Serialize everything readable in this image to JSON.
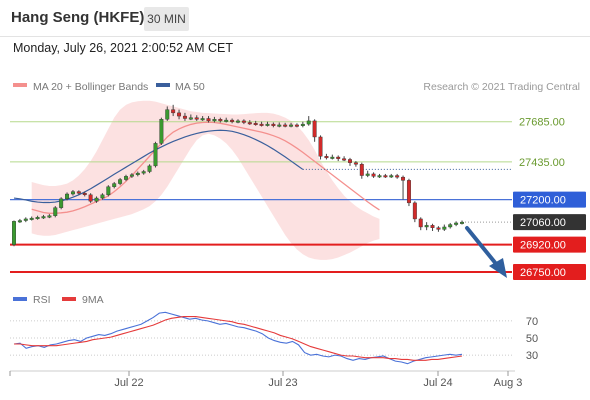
{
  "header": {
    "title": "Hang Seng (HKFE)",
    "timeframe": "30 MIN"
  },
  "timestamp": "Monday, July 26, 2021 2:00:52 AM CET",
  "legend": {
    "items": [
      {
        "label": "MA 20 + Bollinger Bands",
        "color": "#f4908e"
      },
      {
        "label": "MA 50",
        "color": "#3a5f9c"
      }
    ],
    "credit": "Research © 2021 Trading Central"
  },
  "rsi_legend": {
    "items": [
      {
        "label": "RSI",
        "color": "#4a72d8"
      },
      {
        "label": "9MA",
        "color": "#e53b3b"
      }
    ]
  },
  "chart_data": [
    {
      "type": "candlestick",
      "title": "Hang Seng (HKFE)",
      "timeframe": "30 MIN",
      "ylim": [
        26700,
        27820
      ],
      "x_ticks": [
        "Jul 22",
        "Jul 23",
        "Jul 24",
        "Aug 3"
      ],
      "levels": [
        {
          "value": 27685,
          "label": "27685.00",
          "style": "resistance"
        },
        {
          "value": 27435,
          "label": "27435.00",
          "style": "resistance"
        },
        {
          "value": 27200,
          "label": "27200.00",
          "style": "pivot"
        },
        {
          "value": 27060,
          "label": "27060.00",
          "style": "last"
        },
        {
          "value": 26920,
          "label": "26920.00",
          "style": "support"
        },
        {
          "value": 26750,
          "label": "26750.00",
          "style": "support"
        }
      ],
      "candles": [
        [
          26920,
          27065,
          26910,
          27070
        ],
        [
          27065,
          27070,
          27055,
          27080
        ],
        [
          27070,
          27080,
          27060,
          27090
        ],
        [
          27080,
          27085,
          27070,
          27095
        ],
        [
          27085,
          27090,
          27075,
          27100
        ],
        [
          27090,
          27095,
          27080,
          27105
        ],
        [
          27095,
          27100,
          27085,
          27110
        ],
        [
          27100,
          27150,
          27090,
          27160
        ],
        [
          27150,
          27205,
          27140,
          27215
        ],
        [
          27205,
          27235,
          27195,
          27245
        ],
        [
          27235,
          27250,
          27225,
          27260
        ],
        [
          27250,
          27240,
          27230,
          27258
        ],
        [
          27240,
          27230,
          27220,
          27250
        ],
        [
          27230,
          27190,
          27180,
          27240
        ],
        [
          27190,
          27210,
          27180,
          27220
        ],
        [
          27210,
          27230,
          27200,
          27240
        ],
        [
          27230,
          27280,
          27220,
          27290
        ],
        [
          27280,
          27300,
          27270,
          27310
        ],
        [
          27300,
          27325,
          27290,
          27335
        ],
        [
          27325,
          27345,
          27315,
          27355
        ],
        [
          27345,
          27355,
          27335,
          27365
        ],
        [
          27355,
          27365,
          27345,
          27375
        ],
        [
          27365,
          27375,
          27355,
          27385
        ],
        [
          27375,
          27410,
          27365,
          27420
        ],
        [
          27410,
          27550,
          27400,
          27560
        ],
        [
          27550,
          27700,
          27540,
          27710
        ],
        [
          27700,
          27760,
          27690,
          27780
        ],
        [
          27760,
          27740,
          27720,
          27790
        ],
        [
          27740,
          27720,
          27700,
          27760
        ],
        [
          27720,
          27705,
          27690,
          27740
        ],
        [
          27705,
          27710,
          27695,
          27730
        ],
        [
          27710,
          27700,
          27690,
          27725
        ],
        [
          27700,
          27705,
          27690,
          27720
        ],
        [
          27705,
          27690,
          27680,
          27720
        ],
        [
          27690,
          27700,
          27680,
          27715
        ],
        [
          27700,
          27690,
          27680,
          27710
        ],
        [
          27690,
          27695,
          27680,
          27710
        ],
        [
          27695,
          27685,
          27675,
          27705
        ],
        [
          27685,
          27690,
          27675,
          27700
        ],
        [
          27690,
          27680,
          27670,
          27700
        ],
        [
          27680,
          27675,
          27665,
          27695
        ],
        [
          27675,
          27670,
          27660,
          27690
        ],
        [
          27670,
          27665,
          27655,
          27685
        ],
        [
          27665,
          27670,
          27655,
          27685
        ],
        [
          27670,
          27660,
          27650,
          27680
        ],
        [
          27660,
          27665,
          27650,
          27680
        ],
        [
          27665,
          27660,
          27650,
          27678
        ],
        [
          27660,
          27665,
          27650,
          27678
        ],
        [
          27665,
          27660,
          27650,
          27675
        ],
        [
          27660,
          27670,
          27650,
          27685
        ],
        [
          27670,
          27690,
          27660,
          27720
        ],
        [
          27690,
          27590,
          27560,
          27700
        ],
        [
          27590,
          27470,
          27450,
          27600
        ],
        [
          27470,
          27460,
          27450,
          27485
        ],
        [
          27460,
          27465,
          27450,
          27480
        ],
        [
          27465,
          27455,
          27440,
          27475
        ],
        [
          27455,
          27450,
          27440,
          27470
        ],
        [
          27450,
          27430,
          27410,
          27460
        ],
        [
          27430,
          27420,
          27405,
          27440
        ],
        [
          27420,
          27350,
          27330,
          27430
        ],
        [
          27350,
          27360,
          27340,
          27380
        ],
        [
          27360,
          27345,
          27335,
          27370
        ],
        [
          27345,
          27350,
          27335,
          27360
        ],
        [
          27350,
          27345,
          27335,
          27360
        ],
        [
          27345,
          27350,
          27335,
          27360
        ],
        [
          27350,
          27340,
          27330,
          27360
        ],
        [
          27340,
          27320,
          27200,
          27350
        ],
        [
          27320,
          27180,
          27160,
          27330
        ],
        [
          27180,
          27080,
          27060,
          27190
        ],
        [
          27080,
          27030,
          27010,
          27090
        ],
        [
          27030,
          27040,
          27010,
          27060
        ],
        [
          27040,
          27025,
          27005,
          27050
        ],
        [
          27025,
          27015,
          27000,
          27035
        ],
        [
          27015,
          27030,
          27005,
          27045
        ],
        [
          27030,
          27045,
          27020,
          27055
        ],
        [
          27045,
          27055,
          27035,
          27065
        ],
        [
          27055,
          27060,
          27045,
          27070
        ]
      ],
      "ma20": [
        27140,
        27130,
        27120,
        27115,
        27115,
        27118,
        27122,
        27130,
        27142,
        27156,
        27172,
        27188,
        27204,
        27224,
        27250,
        27280,
        27314,
        27350,
        27390,
        27430,
        27470,
        27510,
        27550,
        27590,
        27620,
        27640,
        27656,
        27668,
        27676,
        27680,
        27682,
        27680,
        27675,
        27668,
        27660,
        27652,
        27644,
        27636,
        27628,
        27620,
        27610,
        27598,
        27584,
        27566,
        27544,
        27520,
        27494,
        27466,
        27438,
        27410,
        27382,
        27354,
        27326,
        27298,
        27270,
        27242,
        27214,
        27186,
        27160,
        27136
      ],
      "ma20_x_start": 3,
      "bb_upper": [
        27310,
        27300,
        27290,
        27285,
        27285,
        27290,
        27300,
        27320,
        27350,
        27390,
        27440,
        27500,
        27570,
        27640,
        27710,
        27760,
        27790,
        27805,
        27812,
        27815,
        27815,
        27810,
        27800,
        27790,
        27780,
        27770,
        27760,
        27750,
        27745,
        27740,
        27738,
        27736,
        27734,
        27732,
        27730,
        27730,
        27732,
        27735,
        27738,
        27740,
        27740,
        27735,
        27725,
        27710,
        27690,
        27660,
        27620,
        27570,
        27510,
        27440,
        27380,
        27320,
        27270,
        27225,
        27190,
        27160,
        27135,
        27115,
        27095,
        27080
      ],
      "bb_lower": [
        26990,
        26980,
        26975,
        26975,
        26980,
        26990,
        27000,
        27010,
        27020,
        27030,
        27040,
        27050,
        27060,
        27070,
        27080,
        27090,
        27100,
        27110,
        27125,
        27140,
        27160,
        27190,
        27230,
        27280,
        27340,
        27400,
        27460,
        27520,
        27570,
        27600,
        27610,
        27600,
        27580,
        27550,
        27510,
        27460,
        27400,
        27340,
        27280,
        27220,
        27160,
        27100,
        27040,
        26980,
        26930,
        26890,
        26860,
        26840,
        26830,
        26825,
        26825,
        26830,
        26840,
        26855,
        26870,
        26890,
        26910,
        26930,
        26945,
        26955
      ],
      "ma50": [
        27210,
        27205,
        27198,
        27190,
        27185,
        27182,
        27182,
        27185,
        27192,
        27202,
        27215,
        27230,
        27248,
        27268,
        27290,
        27312,
        27335,
        27358,
        27380,
        27402,
        27424,
        27446,
        27468,
        27490,
        27510,
        27528,
        27546,
        27562,
        27576,
        27590,
        27602,
        27612,
        27620,
        27626,
        27630,
        27632,
        27630,
        27625,
        27616,
        27604,
        27590,
        27574,
        27556,
        27536,
        27514,
        27490,
        27466,
        27440,
        27414,
        27388
      ],
      "ma50_x_start": 0
    },
    {
      "type": "line",
      "title": "RSI",
      "ylim": [
        15,
        85
      ],
      "yticks": [
        70,
        50,
        30
      ],
      "x_ticks": [
        "Jul 22",
        "Jul 23",
        "Jul 24",
        "Aug 3"
      ],
      "series": [
        {
          "name": "RSI",
          "color": "#4a72d8",
          "values": [
            43,
            44,
            38,
            40,
            41,
            39,
            42,
            43,
            45,
            47,
            48,
            46,
            50,
            52,
            54,
            53,
            55,
            58,
            60,
            62,
            64,
            66,
            70,
            74,
            79,
            80,
            78,
            76,
            74,
            72,
            73,
            71,
            70,
            68,
            66,
            67,
            65,
            63,
            62,
            60,
            58,
            55,
            50,
            47,
            45,
            44,
            46,
            42,
            33,
            30,
            31,
            29,
            28,
            30,
            29,
            26,
            24,
            26,
            25,
            27,
            28,
            29,
            26,
            23,
            22,
            20,
            23,
            25,
            27,
            28,
            29,
            30,
            31,
            30,
            31
          ]
        },
        {
          "name": "9MA",
          "color": "#e53b3b",
          "values": [
            43,
            43,
            42,
            41,
            41,
            41,
            41,
            41,
            42,
            43,
            44,
            45,
            46,
            48,
            49,
            50,
            51,
            53,
            55,
            57,
            59,
            61,
            63,
            65,
            68,
            71,
            73,
            74,
            75,
            75,
            75,
            74,
            73,
            72,
            71,
            70,
            69,
            67,
            66,
            64,
            62,
            60,
            58,
            56,
            53,
            51,
            49,
            46,
            43,
            40,
            38,
            36,
            34,
            32,
            30,
            29,
            29,
            28,
            27,
            27,
            27,
            27,
            26,
            26,
            25,
            25,
            24,
            24,
            24,
            25,
            25,
            26,
            27,
            28,
            29
          ]
        }
      ]
    }
  ]
}
